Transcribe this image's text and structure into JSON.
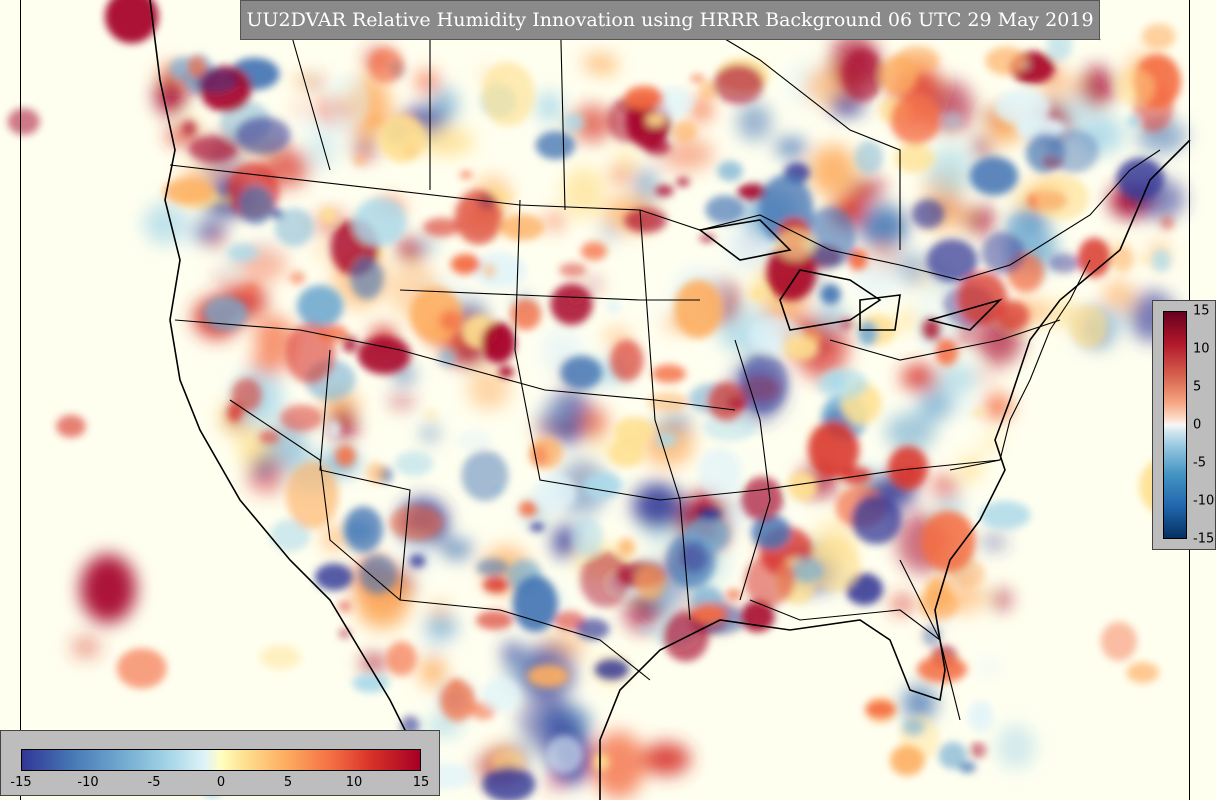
{
  "title": "UU2DVAR Relative Humidity Innovation using HRRR Background 06 UTC 29 May 2019",
  "colorbar_right": {
    "ticks": [
      "15",
      "10",
      "5",
      "0",
      "-5",
      "-10",
      "-15"
    ],
    "range": [
      -15,
      15
    ]
  },
  "colorbar_bottom": {
    "ticks": [
      "-15",
      "-10",
      "-5",
      "0",
      "5",
      "10",
      "15"
    ],
    "range": [
      -15,
      15
    ]
  },
  "colors": {
    "background": "#fffff0",
    "positive": "#b2182b",
    "negative": "#2166ac",
    "title_box": "#8a8a8a"
  }
}
